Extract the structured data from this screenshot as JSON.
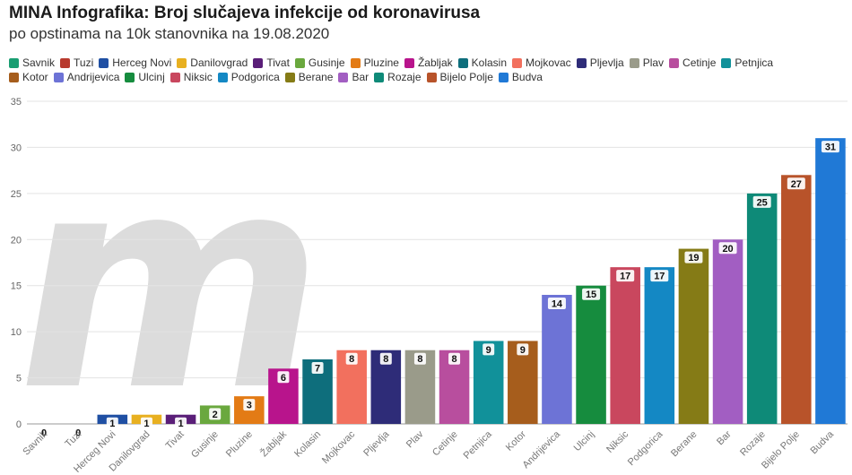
{
  "title": "MINA Infografika: Broj slučajeva infekcije od koronavirusa",
  "subtitle": "po opstinama na 10k stanovnika na 19.08.2020",
  "watermark": "m",
  "chart_data": {
    "type": "bar",
    "title": "MINA Infografika: Broj slučajeva infekcije od koronavirusa",
    "subtitle": "po opstinama na 10k stanovnika na 19.08.2020",
    "xlabel": "",
    "ylabel": "",
    "ylim": [
      0,
      35
    ],
    "yticks": [
      0,
      5,
      10,
      15,
      20,
      25,
      30,
      35
    ],
    "grid": true,
    "legend_position": "top",
    "categories": [
      "Savnik",
      "Tuzi",
      "Herceg Novi",
      "Danilovgrad",
      "Tivat",
      "Gusinje",
      "Pluzine",
      "Žabljak",
      "Kolasin",
      "Mojkovac",
      "Pljevlja",
      "Plav",
      "Cetinje",
      "Petnjica",
      "Kotor",
      "Andrijevica",
      "Ulcinj",
      "Niksic",
      "Podgorica",
      "Berane",
      "Bar",
      "Rozaje",
      "Bijelo Polje",
      "Budva"
    ],
    "values": [
      0,
      0,
      1,
      1,
      1,
      2,
      3,
      6,
      7,
      8,
      8,
      8,
      8,
      9,
      9,
      14,
      15,
      17,
      17,
      19,
      20,
      25,
      27,
      31
    ],
    "colors": [
      "#1a9e72",
      "#b83a2e",
      "#1f4fa3",
      "#e8b020",
      "#5a1e78",
      "#6aa83e",
      "#e37b15",
      "#b8148c",
      "#0e6e7c",
      "#f2705e",
      "#2e2c78",
      "#9a9b8a",
      "#b84e9e",
      "#11919a",
      "#a65d1c",
      "#6d73d6",
      "#168c3e",
      "#c9475e",
      "#1488c4",
      "#857b16",
      "#a25ec2",
      "#0e8a78",
      "#b8532a",
      "#2079d6"
    ]
  }
}
